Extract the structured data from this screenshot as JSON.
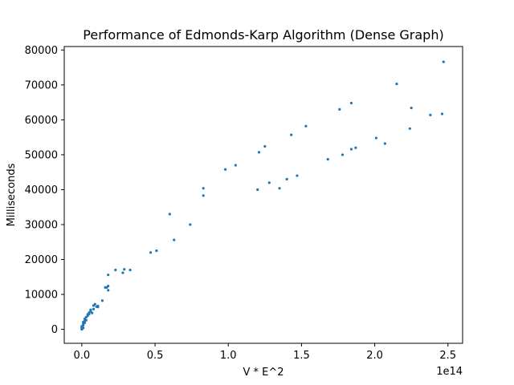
{
  "chart_data": {
    "type": "scatter",
    "title": "Performance of Edmonds-Karp Algorithm (Dense Graph)",
    "xlabel": "V * E^2",
    "ylabel": "Milliseconds",
    "x_offset_label": "1e14",
    "x_scale": 100000000000000.0,
    "xlim": [
      -0.12,
      2.6
    ],
    "ylim": [
      -4000,
      81000
    ],
    "xticks": [
      0.0,
      0.5,
      1.0,
      1.5,
      2.0,
      2.5
    ],
    "xtick_labels": [
      "0.0",
      "0.5",
      "1.0",
      "1.5",
      "2.0",
      "2.5"
    ],
    "yticks": [
      0,
      10000,
      20000,
      30000,
      40000,
      50000,
      60000,
      70000,
      80000
    ],
    "ytick_labels": [
      "0",
      "10000",
      "20000",
      "30000",
      "40000",
      "50000",
      "60000",
      "70000",
      "80000"
    ],
    "grid": false,
    "marker_color": "#1f77b4",
    "points": [
      [
        0.0,
        0
      ],
      [
        0.0,
        300
      ],
      [
        0.0,
        600
      ],
      [
        0.0,
        900
      ],
      [
        0.01,
        400
      ],
      [
        0.01,
        1200
      ],
      [
        0.01,
        1600
      ],
      [
        0.01,
        2100
      ],
      [
        0.02,
        2500
      ],
      [
        0.02,
        1900
      ],
      [
        0.02,
        3000
      ],
      [
        0.03,
        2600
      ],
      [
        0.03,
        3500
      ],
      [
        0.04,
        4300
      ],
      [
        0.04,
        3900
      ],
      [
        0.05,
        4800
      ],
      [
        0.05,
        4400
      ],
      [
        0.06,
        5200
      ],
      [
        0.06,
        5600
      ],
      [
        0.07,
        4700
      ],
      [
        0.08,
        6800
      ],
      [
        0.08,
        5800
      ],
      [
        0.09,
        7200
      ],
      [
        0.1,
        6500
      ],
      [
        0.11,
        6700
      ],
      [
        0.11,
        6400
      ],
      [
        0.14,
        8200
      ],
      [
        0.16,
        12000
      ],
      [
        0.17,
        12000
      ],
      [
        0.18,
        11200
      ],
      [
        0.18,
        12400
      ],
      [
        0.18,
        15600
      ],
      [
        0.23,
        17000
      ],
      [
        0.28,
        16200
      ],
      [
        0.29,
        17200
      ],
      [
        0.33,
        17000
      ],
      [
        0.47,
        22000
      ],
      [
        0.51,
        22500
      ],
      [
        0.6,
        33000
      ],
      [
        0.63,
        25600
      ],
      [
        0.74,
        30000
      ],
      [
        0.83,
        38300
      ],
      [
        0.83,
        40400
      ],
      [
        0.98,
        45800
      ],
      [
        1.05,
        47000
      ],
      [
        1.2,
        40000
      ],
      [
        1.21,
        50700
      ],
      [
        1.25,
        52400
      ],
      [
        1.28,
        42000
      ],
      [
        1.35,
        40400
      ],
      [
        1.4,
        43000
      ],
      [
        1.43,
        55700
      ],
      [
        1.47,
        44000
      ],
      [
        1.53,
        58200
      ],
      [
        1.68,
        48700
      ],
      [
        1.76,
        63000
      ],
      [
        1.78,
        50000
      ],
      [
        1.84,
        64800
      ],
      [
        1.84,
        51600
      ],
      [
        1.87,
        52000
      ],
      [
        2.01,
        54800
      ],
      [
        2.07,
        53200
      ],
      [
        2.15,
        70300
      ],
      [
        2.24,
        57500
      ],
      [
        2.25,
        63400
      ],
      [
        2.38,
        61400
      ],
      [
        2.46,
        61700
      ],
      [
        2.47,
        76600
      ]
    ]
  }
}
